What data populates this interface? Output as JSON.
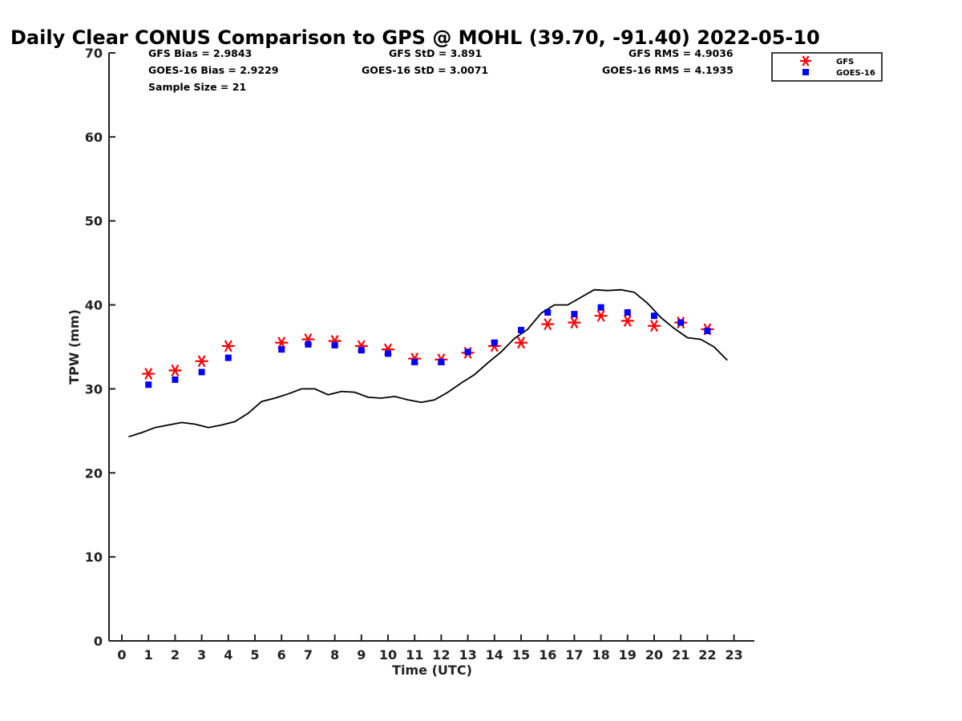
{
  "chart_data": {
    "type": "scatter",
    "title": "Daily Clear CONUS Comparison to GPS @ MOHL (39.70, -91.40) 2022-05-10",
    "xlabel": "Time (UTC)",
    "ylabel": "TPW (mm)",
    "xlim": [
      -0.5,
      23.8
    ],
    "ylim": [
      0,
      70
    ],
    "x_ticks": [
      0,
      1,
      2,
      3,
      4,
      5,
      6,
      7,
      8,
      9,
      10,
      11,
      12,
      13,
      14,
      15,
      16,
      17,
      18,
      19,
      20,
      21,
      22,
      23
    ],
    "y_ticks": [
      0,
      10,
      20,
      30,
      40,
      50,
      60,
      70
    ],
    "grid": false,
    "legend_position": "top-right",
    "stats": {
      "gfs_bias": "GFS Bias = 2.9843",
      "goes_bias": "GOES-16 Bias = 2.9229",
      "sample_size": "Sample Size = 21",
      "gfs_std": "GFS StD = 3.891",
      "goes_std": "GOES-16 StD = 3.0071",
      "gfs_rms": "GFS RMS = 4.9036",
      "goes_rms": "GOES-16 RMS = 4.1935"
    },
    "series": [
      {
        "name": "GFS",
        "marker": "asterisk",
        "color": "#ff0000",
        "x": [
          1,
          2,
          3,
          4,
          6,
          7,
          8,
          9,
          10,
          11,
          12,
          13,
          14,
          15,
          16,
          17,
          18,
          19,
          20,
          21,
          22
        ],
        "y": [
          31.8,
          32.2,
          33.3,
          35.1,
          35.5,
          35.9,
          35.7,
          35.1,
          34.7,
          33.6,
          33.5,
          34.3,
          35.1,
          35.5,
          37.7,
          37.9,
          38.7,
          38.1,
          37.5,
          37.9,
          37.1
        ]
      },
      {
        "name": "GOES-16",
        "marker": "square",
        "color": "#0000ff",
        "x": [
          1,
          2,
          3,
          4,
          6,
          7,
          8,
          9,
          10,
          11,
          12,
          13,
          14,
          15,
          16,
          17,
          18,
          19,
          20,
          21,
          22
        ],
        "y": [
          30.5,
          31.1,
          32.0,
          33.7,
          34.7,
          35.3,
          35.2,
          34.6,
          34.2,
          33.2,
          33.2,
          34.4,
          35.5,
          37.0,
          39.1,
          38.9,
          39.7,
          39.1,
          38.7,
          37.9,
          36.9
        ]
      },
      {
        "name": "GPS",
        "marker": "line",
        "color": "#000000",
        "x": [
          0.25,
          0.75,
          1.25,
          1.75,
          2.25,
          2.75,
          3.25,
          3.75,
          4.25,
          4.75,
          5.25,
          5.75,
          6.25,
          6.75,
          7.25,
          7.75,
          8.25,
          8.75,
          9.25,
          9.75,
          10.25,
          10.75,
          11.25,
          11.75,
          12.25,
          12.75,
          13.25,
          13.75,
          14.25,
          14.75,
          15.25,
          15.75,
          16.25,
          16.75,
          17.25,
          17.75,
          18.25,
          18.75,
          19.25,
          19.75,
          20.25,
          20.75,
          21.25,
          21.75,
          22.25,
          22.75
        ],
        "y": [
          24.3,
          24.8,
          25.4,
          25.7,
          26.0,
          25.8,
          25.4,
          25.7,
          26.1,
          27.1,
          28.5,
          28.9,
          29.4,
          30.0,
          30.0,
          29.3,
          29.7,
          29.6,
          29.0,
          28.9,
          29.1,
          28.7,
          28.4,
          28.7,
          29.6,
          30.7,
          31.7,
          33.1,
          34.4,
          36.0,
          37.1,
          39.0,
          40.0,
          40.0,
          40.9,
          41.8,
          41.7,
          41.8,
          41.5,
          40.2,
          38.5,
          37.2,
          36.1,
          35.9,
          35.0,
          33.4
        ]
      }
    ]
  }
}
